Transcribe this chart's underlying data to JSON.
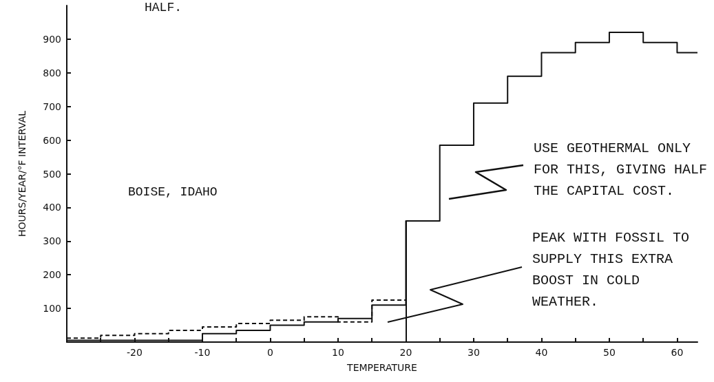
{
  "chart_data": {
    "type": "step",
    "xlabel": "TEMPERATURE",
    "ylabel": "HOURS/YEAR/°F INTERVAL",
    "x": [
      -30,
      -25,
      -20,
      -15,
      -10,
      -5,
      0,
      5,
      10,
      15,
      20,
      25,
      30,
      35,
      40,
      45,
      50,
      55,
      60,
      63
    ],
    "series": [
      {
        "color": "#111111",
        "line_style": "solid",
        "values": [
          5,
          5,
          5,
          5,
          25,
          35,
          50,
          60,
          70,
          110,
          360,
          585,
          710,
          790,
          860,
          890,
          920,
          890,
          860,
          860
        ]
      },
      {
        "color": "#111111",
        "line_style": "dashed",
        "x": [
          -30,
          -25,
          -20,
          -15,
          -10,
          -5,
          0,
          5,
          10,
          15,
          20
        ],
        "values": [
          12,
          20,
          25,
          35,
          45,
          55,
          65,
          75,
          60,
          125,
          125
        ]
      }
    ],
    "xlim": [
      -30,
      63
    ],
    "ylim": [
      0,
      1000
    ],
    "xticks": [
      {
        "value": -25,
        "label": null
      },
      -20,
      {
        "value": -15,
        "label": null
      },
      -10,
      {
        "value": -5,
        "label": null
      },
      0,
      {
        "value": 5,
        "label": null
      },
      10,
      {
        "value": 15,
        "label": null
      },
      20,
      {
        "value": 25,
        "label": null
      },
      30,
      {
        "value": 35,
        "label": null
      },
      40,
      {
        "value": 45,
        "label": null
      },
      50,
      {
        "value": 55,
        "label": null
      },
      60
    ],
    "yticks": [
      100,
      200,
      300,
      400,
      500,
      600,
      700,
      800,
      900
    ],
    "ref_lines": [
      {
        "axis": "x",
        "value": 20,
        "color": "#111111"
      }
    ],
    "marker": "none",
    "annotations": [
      "HALF.",
      "BOISE, IDAHO",
      "USE GEOTHERMAL ONLY FOR THIS, GIVING HALF THE CAPITAL COST.",
      "PEAK WITH FOSSIL TO SUPPLY THIS EXTRA BOOST IN COLD WEATHER."
    ]
  }
}
